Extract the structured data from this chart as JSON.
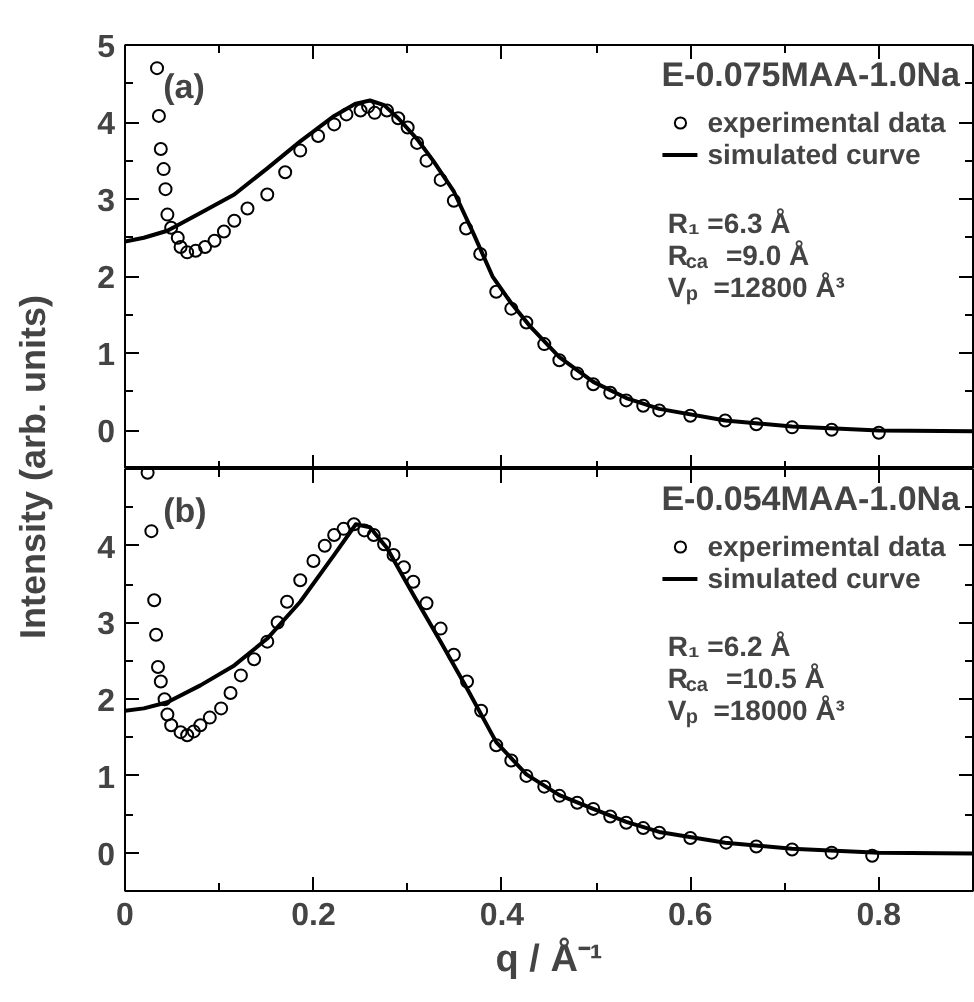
{
  "chart_data": [
    {
      "type": "scatter",
      "ylabel": "Intensity (arb. units)",
      "legend_title": "E-0.075MAA-1.0Na",
      "legend": "top right",
      "tick_labels": "y",
      "xlim": [
        0,
        0.9
      ],
      "ylim": [
        -0.5,
        5
      ],
      "xticks": [
        0,
        0.2,
        0.4,
        0.6,
        0.8
      ],
      "yticks": [
        0,
        1,
        2,
        3,
        4,
        5
      ],
      "annotations": [
        "(a)",
        "R₁ =6.3 Å",
        "R$_{ca}$ =9.0 Å",
        "V$_{p}$ =12800 Å³"
      ],
      "series": [
        {
          "name": "experimental data",
          "marker": "circle",
          "color": "#000000",
          "x": [
            0.034,
            0.036,
            0.038,
            0.041,
            0.043,
            0.045,
            0.049,
            0.056,
            0.059,
            0.066,
            0.075,
            0.085,
            0.095,
            0.105,
            0.116,
            0.13,
            0.151,
            0.17,
            0.186,
            0.205,
            0.222,
            0.235,
            0.25,
            0.258,
            0.265,
            0.278,
            0.29,
            0.3,
            0.31,
            0.32,
            0.335,
            0.349,
            0.362,
            0.377,
            0.394,
            0.41,
            0.426,
            0.445,
            0.461,
            0.48,
            0.497,
            0.515,
            0.532,
            0.55,
            0.567,
            0.6,
            0.637,
            0.67,
            0.708,
            0.75,
            0.8
          ],
          "values": [
            4.7,
            4.08,
            3.65,
            3.39,
            3.13,
            2.8,
            2.63,
            2.5,
            2.38,
            2.31,
            2.33,
            2.38,
            2.46,
            2.58,
            2.72,
            2.88,
            3.06,
            3.35,
            3.63,
            3.82,
            3.97,
            4.1,
            4.15,
            4.2,
            4.12,
            4.15,
            4.05,
            3.93,
            3.73,
            3.5,
            3.25,
            2.98,
            2.62,
            2.29,
            1.8,
            1.58,
            1.4,
            1.12,
            0.91,
            0.74,
            0.6,
            0.49,
            0.39,
            0.32,
            0.26,
            0.19,
            0.13,
            0.08,
            0.04,
            0.01,
            -0.03
          ]
        },
        {
          "name": "simulated curve",
          "type": "line",
          "color": "#000000",
          "x": [
            0,
            0.02,
            0.045,
            0.08,
            0.116,
            0.151,
            0.186,
            0.222,
            0.245,
            0.26,
            0.275,
            0.29,
            0.31,
            0.327,
            0.349,
            0.37,
            0.39,
            0.41,
            0.43,
            0.461,
            0.497,
            0.532,
            0.567,
            0.637,
            0.708,
            0.8,
            0.9
          ],
          "values": [
            2.45,
            2.5,
            2.59,
            2.82,
            3.06,
            3.4,
            3.75,
            4.08,
            4.24,
            4.28,
            4.22,
            4.05,
            3.78,
            3.5,
            3.1,
            2.55,
            2.0,
            1.65,
            1.35,
            0.95,
            0.63,
            0.42,
            0.28,
            0.13,
            0.05,
            0.0,
            -0.01
          ]
        }
      ]
    },
    {
      "type": "scatter",
      "xlabel": "q / Å⁻¹",
      "legend_title": "E-0.054MAA-1.0Na",
      "legend": "top right",
      "xlim": [
        0,
        0.9
      ],
      "ylim": [
        -0.5,
        5
      ],
      "xticks": [
        0,
        0.2,
        0.4,
        0.6,
        0.8
      ],
      "yticks": [
        0,
        1,
        2,
        3,
        4
      ],
      "annotations": [
        "(b)",
        "R₁ =6.2 Å",
        "R$_{ca}$ =10.5 Å",
        "V$_{p}$ =18000 Å³"
      ],
      "series": [
        {
          "name": "experimental data",
          "marker": "circle",
          "color": "#000000",
          "x": [
            0.024,
            0.028,
            0.031,
            0.033,
            0.035,
            0.038,
            0.042,
            0.045,
            0.049,
            0.059,
            0.066,
            0.073,
            0.08,
            0.09,
            0.102,
            0.112,
            0.123,
            0.137,
            0.151,
            0.162,
            0.172,
            0.186,
            0.2,
            0.212,
            0.222,
            0.232,
            0.243,
            0.254,
            0.264,
            0.275,
            0.285,
            0.296,
            0.306,
            0.32,
            0.335,
            0.349,
            0.363,
            0.378,
            0.394,
            0.41,
            0.426,
            0.445,
            0.461,
            0.48,
            0.497,
            0.515,
            0.532,
            0.55,
            0.567,
            0.6,
            0.638,
            0.67,
            0.708,
            0.75,
            0.793
          ],
          "values": [
            4.95,
            4.19,
            3.29,
            2.84,
            2.42,
            2.23,
            2.0,
            1.8,
            1.66,
            1.57,
            1.53,
            1.58,
            1.66,
            1.76,
            1.88,
            2.08,
            2.31,
            2.52,
            2.75,
            3.0,
            3.27,
            3.55,
            3.8,
            4.0,
            4.14,
            4.22,
            4.28,
            4.2,
            4.14,
            4.02,
            3.88,
            3.72,
            3.53,
            3.25,
            2.92,
            2.58,
            2.23,
            1.85,
            1.4,
            1.2,
            1.0,
            0.86,
            0.74,
            0.65,
            0.57,
            0.47,
            0.39,
            0.32,
            0.26,
            0.19,
            0.13,
            0.08,
            0.04,
            0.0,
            -0.04
          ]
        },
        {
          "name": "simulated curve",
          "type": "line",
          "color": "#000000",
          "x": [
            0,
            0.02,
            0.045,
            0.08,
            0.116,
            0.151,
            0.186,
            0.222,
            0.245,
            0.26,
            0.278,
            0.306,
            0.335,
            0.363,
            0.394,
            0.426,
            0.461,
            0.497,
            0.532,
            0.567,
            0.637,
            0.708,
            0.8,
            0.9
          ],
          "values": [
            1.85,
            1.88,
            1.96,
            2.18,
            2.44,
            2.79,
            3.27,
            3.88,
            4.28,
            4.24,
            3.97,
            3.36,
            2.75,
            2.14,
            1.44,
            1.02,
            0.75,
            0.57,
            0.4,
            0.27,
            0.13,
            0.05,
            0.0,
            -0.01
          ]
        }
      ]
    }
  ]
}
